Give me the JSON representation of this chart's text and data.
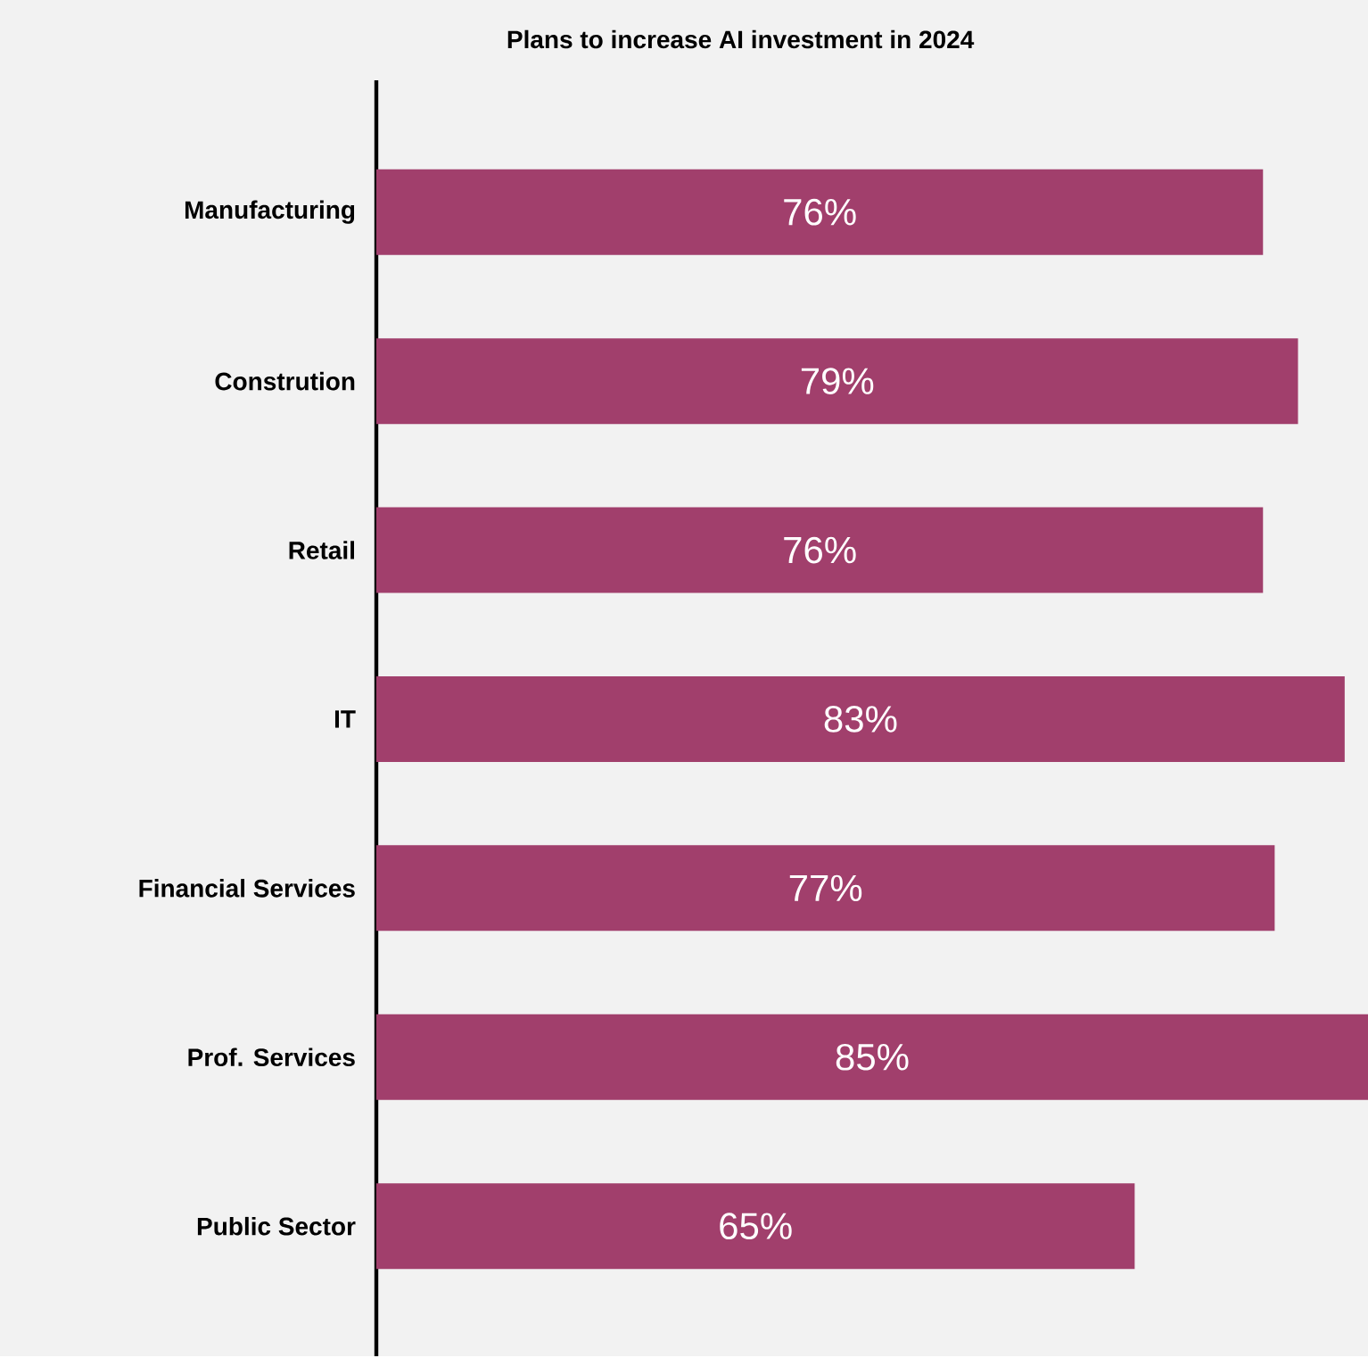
{
  "chart_data": {
    "type": "bar",
    "orientation": "horizontal",
    "title": "Plans to increase AI investment in 2024",
    "categories": [
      "Manufacturing",
      "Constrution",
      "Retail",
      "IT",
      "Financial Services",
      "Prof. Services",
      "Public Sector"
    ],
    "values": [
      76,
      79,
      76,
      83,
      77,
      85,
      65
    ],
    "value_labels": [
      "76%",
      "79%",
      "76%",
      "83%",
      "77%",
      "85%",
      "65%"
    ],
    "color": "#a13f6c",
    "xlim": [
      0,
      85
    ],
    "tick_labels": "y"
  }
}
